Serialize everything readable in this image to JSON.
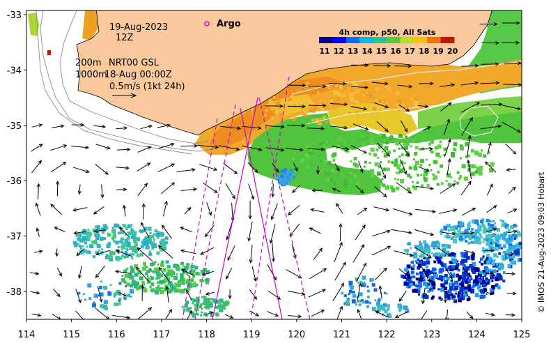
{
  "map": {
    "date": "19-Aug-2023",
    "time": "12Z",
    "argo_label": "Argo",
    "contour_200": "200m",
    "contour_1000": "1000m",
    "source": "NRT00 GSL",
    "source_time": "18-Aug 00:00Z",
    "scale_label": "0.5m/s (1kt 24h)"
  },
  "colorbar": {
    "title": "4h comp, p50, All Sats",
    "ticks": [
      "11",
      "12",
      "13",
      "14",
      "15",
      "16",
      "17",
      "18",
      "19",
      "20"
    ],
    "colors": [
      "#00008f",
      "#0000ff",
      "#0070ff",
      "#00b8e8",
      "#20c890",
      "#50cc38",
      "#b8e020",
      "#f8c400",
      "#f07000",
      "#c41400"
    ]
  },
  "axes": {
    "x_ticks": [
      "114",
      "115",
      "116",
      "117",
      "118",
      "119",
      "120",
      "121",
      "122",
      "123",
      "124",
      "125"
    ],
    "y_ticks": [
      "-33",
      "-34",
      "-35",
      "-36",
      "-37",
      "-38"
    ]
  },
  "credit": "© IMOS 21-Aug-2023 09:03 Hobart",
  "colors": {
    "land": "#f9c89d",
    "track": "#cc00cc",
    "argo": "#cc00cc",
    "bathymetry": "#8a8a8a"
  }
}
